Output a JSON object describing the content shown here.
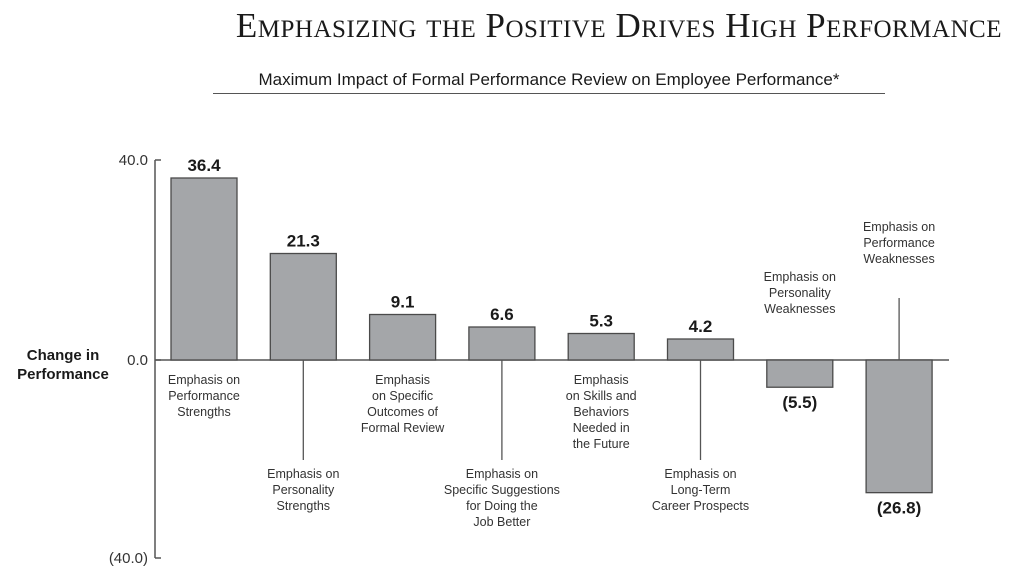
{
  "chart_data": {
    "type": "bar",
    "title": "Emphasizing the Positive Drives High Performance",
    "subtitle": "Maximum Impact of Formal Performance Review on Employee Performance*",
    "xlabel": "",
    "ylabel": [
      "Change in",
      "Performance"
    ],
    "ylim": [
      -40,
      40
    ],
    "yticks": [
      {
        "value": 40,
        "label": "40.0"
      },
      {
        "value": 0,
        "label": "0.0"
      },
      {
        "value": -40,
        "label": "(40.0)"
      }
    ],
    "grid": false,
    "categories": [
      {
        "lines": [
          "Emphasis on",
          "Performance",
          "Strengths"
        ],
        "placement": "below-short"
      },
      {
        "lines": [
          "Emphasis on",
          "Personality",
          "Strengths"
        ],
        "placement": "below-long"
      },
      {
        "lines": [
          "Emphasis",
          "on Specific",
          "Outcomes of",
          "Formal Review"
        ],
        "placement": "below-short"
      },
      {
        "lines": [
          "Emphasis on",
          "Specific Suggestions",
          "for Doing the",
          "Job Better"
        ],
        "placement": "below-long"
      },
      {
        "lines": [
          "Emphasis",
          "on Skills and",
          "Behaviors",
          "Needed in",
          "the Future"
        ],
        "placement": "below-short"
      },
      {
        "lines": [
          "Emphasis on",
          "Long-Term",
          "Career Prospects"
        ],
        "placement": "below-long"
      },
      {
        "lines": [
          "Emphasis on",
          "Personality",
          "Weaknesses"
        ],
        "placement": "above-short"
      },
      {
        "lines": [
          "Emphasis on",
          "Performance",
          "Weaknesses"
        ],
        "placement": "above-long"
      }
    ],
    "values": [
      36.4,
      21.3,
      9.1,
      6.6,
      5.3,
      4.2,
      -5.5,
      -26.8
    ],
    "value_labels": [
      "36.4",
      "21.3",
      "9.1",
      "6.6",
      "5.3",
      "4.2",
      "(5.5)",
      "(26.8)"
    ],
    "colors": {
      "bar_fill": "#a4a6a9",
      "bar_stroke": "#4a4a4a",
      "axis": "#555555",
      "text": "#1a1a1a"
    }
  }
}
